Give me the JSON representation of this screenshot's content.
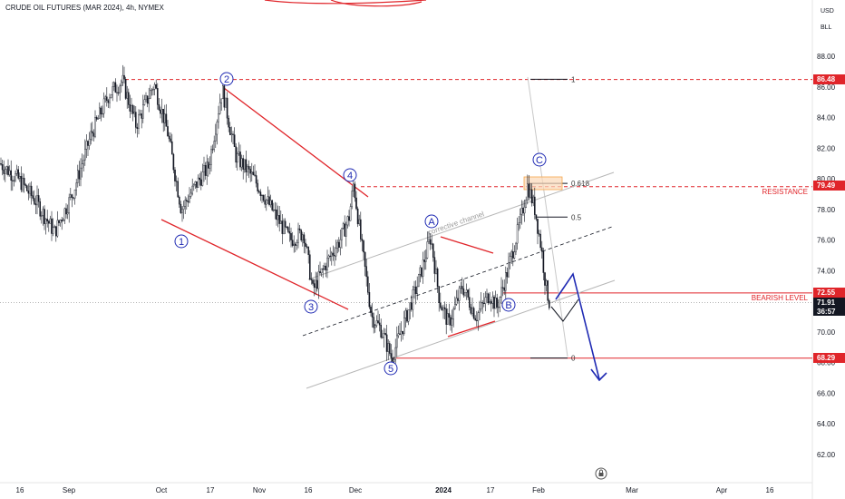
{
  "header": {
    "title": "CRUDE OIL FUTURES (MAR 2024), 4h, NYMEX",
    "currency_label": "USD",
    "unit_label": "BLL"
  },
  "chart_data": {
    "type": "candlestick",
    "title": "CRUDE OIL FUTURES (MAR 2024), 4h, NYMEX",
    "ylim": [
      60.5,
      90.5
    ],
    "y_ticks": [
      "88.00",
      "86.00",
      "84.00",
      "82.00",
      "80.00",
      "78.00",
      "76.00",
      "74.00",
      "72.00",
      "70.00",
      "68.00",
      "66.00",
      "64.00",
      "62.00"
    ],
    "x_ticks": [
      "16",
      "Sep",
      "Oct",
      "17",
      "Nov",
      "16",
      "Dec",
      "2024",
      "17",
      "Feb",
      "Mar",
      "Apr",
      "16"
    ],
    "price_path": [
      [
        0,
        81
      ],
      [
        20,
        80
      ],
      [
        40,
        78.5
      ],
      [
        60,
        76.5
      ],
      [
        80,
        79
      ],
      [
        100,
        82.8
      ],
      [
        120,
        85.5
      ],
      [
        135,
        86.4
      ],
      [
        150,
        83.5
      ],
      [
        170,
        86.2
      ],
      [
        185,
        83
      ],
      [
        200,
        78
      ],
      [
        215,
        79.5
      ],
      [
        230,
        80.8
      ],
      [
        245,
        85.9
      ],
      [
        260,
        81.5
      ],
      [
        280,
        80
      ],
      [
        300,
        78
      ],
      [
        320,
        76
      ],
      [
        335,
        76.5
      ],
      [
        345,
        72.7
      ],
      [
        360,
        74.5
      ],
      [
        375,
        76
      ],
      [
        385,
        77.5
      ],
      [
        390,
        79.7
      ],
      [
        398,
        76
      ],
      [
        410,
        71
      ],
      [
        420,
        70.2
      ],
      [
        432,
        68.3
      ],
      [
        445,
        70.5
      ],
      [
        460,
        73
      ],
      [
        475,
        76.2
      ],
      [
        485,
        72
      ],
      [
        495,
        70.5
      ],
      [
        510,
        73
      ],
      [
        525,
        71
      ],
      [
        540,
        72.5
      ],
      [
        548,
        71.6
      ],
      [
        560,
        74
      ],
      [
        575,
        77.5
      ],
      [
        582,
        79.6
      ],
      [
        590,
        78
      ],
      [
        597,
        75.5
      ],
      [
        602,
        73
      ],
      [
        606,
        71.9
      ]
    ],
    "price_levels": [
      {
        "label": "RESISTANCE",
        "value": 79.49,
        "display": "79.49"
      },
      {
        "label": "BEARISH LEVEL",
        "value": 72.55,
        "display": "72.55"
      },
      {
        "label": "",
        "value": 86.48,
        "display": "86.48"
      },
      {
        "label": "",
        "value": 68.29,
        "display": "68.29"
      }
    ],
    "current_price": {
      "value": 71.91,
      "display": "71.91",
      "countdown": "36:57"
    },
    "fib_levels": [
      {
        "label": "1",
        "value": 86.5
      },
      {
        "label": "0.618",
        "value": 79.7
      },
      {
        "label": "0.5",
        "value": 77.5
      },
      {
        "label": "0",
        "value": 68.3
      }
    ],
    "wave_labels": [
      "1",
      "2",
      "3",
      "4",
      "5",
      "A",
      "B",
      "C"
    ],
    "annotations": [
      "corrective channel"
    ]
  },
  "legend_colors": {
    "candles": "#131722",
    "resistance": "#e0252a",
    "channel": "#b7b7b7",
    "wave": "#1f2ab3",
    "projection": "#1f2ab3"
  }
}
